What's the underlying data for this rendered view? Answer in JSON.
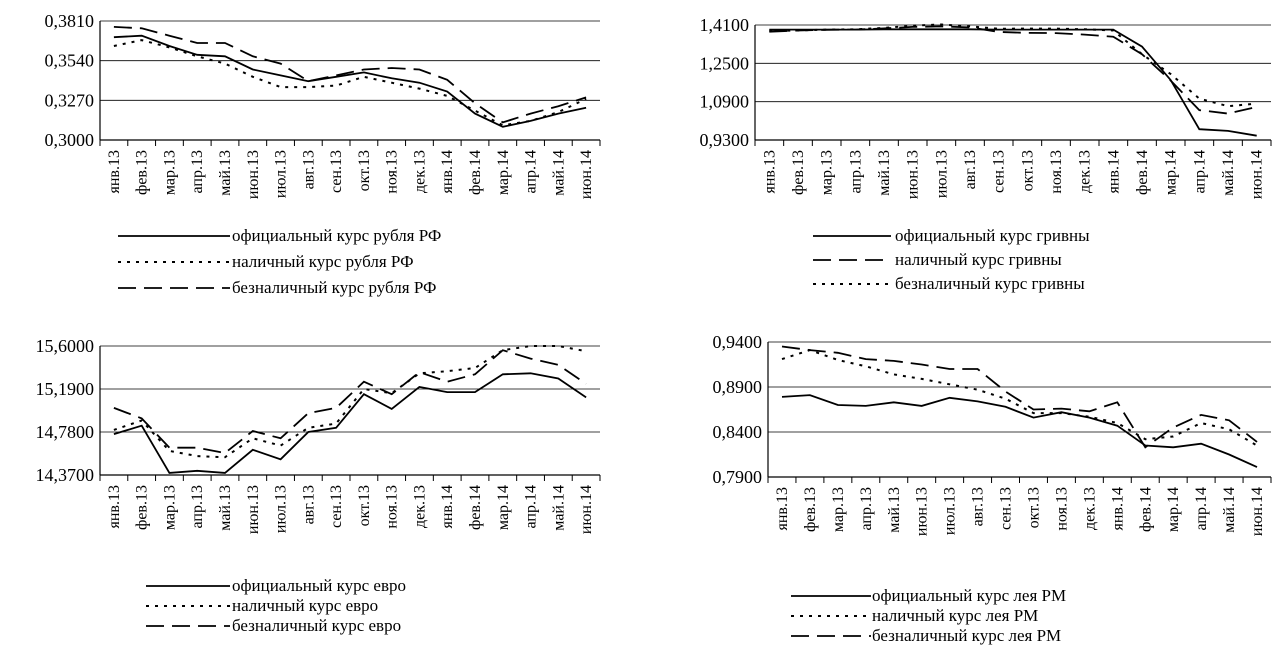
{
  "chart_data": [
    {
      "type": "line",
      "title": "",
      "xlabel": "",
      "ylabel": "",
      "categories": [
        "янв.13",
        "фев.13",
        "мар.13",
        "апр.13",
        "май.13",
        "июн.13",
        "июл.13",
        "авг.13",
        "сен.13",
        "окт.13",
        "ноя.13",
        "дек.13",
        "янв.14",
        "фев.14",
        "мар.14",
        "апр.14",
        "май.14",
        "июн.14"
      ],
      "yticks": [
        "0,3000",
        "0,3270",
        "0,3540",
        "0,3810"
      ],
      "ylim": [
        0.3,
        0.381
      ],
      "grid": true,
      "legend_position": "bottom",
      "series": [
        {
          "name": "официальный курс рубля РФ",
          "style": "solid",
          "values": [
            0.37,
            0.371,
            0.364,
            0.358,
            0.357,
            0.348,
            0.344,
            0.34,
            0.343,
            0.346,
            0.342,
            0.339,
            0.333,
            0.318,
            0.309,
            0.313,
            0.318,
            0.322
          ]
        },
        {
          "name": "наличный курс рубля РФ",
          "style": "dotted",
          "values": [
            0.364,
            0.368,
            0.363,
            0.357,
            0.352,
            0.343,
            0.336,
            0.336,
            0.337,
            0.343,
            0.339,
            0.335,
            0.33,
            0.32,
            0.31,
            0.313,
            0.319,
            0.328
          ]
        },
        {
          "name": "безналичный курс рубля РФ",
          "style": "dashed",
          "values": [
            0.377,
            0.376,
            0.371,
            0.366,
            0.366,
            0.357,
            0.352,
            0.34,
            0.344,
            0.348,
            0.349,
            0.348,
            0.341,
            0.325,
            0.312,
            0.318,
            0.323,
            0.329
          ]
        }
      ]
    },
    {
      "type": "line",
      "title": "",
      "xlabel": "",
      "ylabel": "",
      "categories": [
        "янв.13",
        "фев.13",
        "мар.13",
        "апр.13",
        "май.13",
        "июн.13",
        "июл.13",
        "авг.13",
        "сен.13",
        "окт.13",
        "ноя.13",
        "дек.13",
        "янв.14",
        "фев.14",
        "мар.14",
        "апр.14",
        "май.14",
        "июн.14"
      ],
      "yticks": [
        "0,9300",
        "1,0900",
        "1,2500",
        "1,4100"
      ],
      "ylim": [
        0.93,
        1.41
      ],
      "grid": true,
      "legend_position": "bottom",
      "series": [
        {
          "name": "официальный курс гривны",
          "style": "solid",
          "values": [
            1.391,
            1.391,
            1.391,
            1.391,
            1.392,
            1.392,
            1.392,
            1.392,
            1.391,
            1.391,
            1.391,
            1.391,
            1.391,
            1.32,
            1.18,
            0.975,
            0.968,
            0.948
          ]
        },
        {
          "name": "наличный курс гривны",
          "style": "dashed",
          "values": [
            1.382,
            1.387,
            1.39,
            1.391,
            1.396,
            1.402,
            1.404,
            1.4,
            1.381,
            1.377,
            1.376,
            1.37,
            1.361,
            1.288,
            1.178,
            1.055,
            1.04,
            1.068
          ]
        },
        {
          "name": "безналичный курс гривны",
          "style": "dotted",
          "values": [
            1.386,
            1.387,
            1.391,
            1.392,
            1.398,
            1.407,
            1.412,
            1.404,
            1.394,
            1.395,
            1.395,
            1.392,
            1.387,
            1.288,
            1.205,
            1.103,
            1.071,
            1.082
          ]
        }
      ]
    },
    {
      "type": "line",
      "title": "",
      "xlabel": "",
      "ylabel": "",
      "categories": [
        "янв.13",
        "фев.13",
        "мар.13",
        "апр.13",
        "май.13",
        "июн.13",
        "июл.13",
        "авг.13",
        "сен.13",
        "окт.13",
        "ноя.13",
        "дек.13",
        "янв.14",
        "фев.14",
        "мар.14",
        "апр.14",
        "май.14",
        "июн.14"
      ],
      "yticks": [
        "14,3700",
        "14,7800",
        "15,1900",
        "15,6000"
      ],
      "ylim": [
        14.37,
        15.6
      ],
      "grid": true,
      "legend_position": "bottom",
      "series": [
        {
          "name": "официальный курс евро",
          "style": "solid",
          "values": [
            14.76,
            14.84,
            14.39,
            14.41,
            14.39,
            14.61,
            14.52,
            14.78,
            14.82,
            15.14,
            15.0,
            15.21,
            15.16,
            15.16,
            15.33,
            15.34,
            15.29,
            15.11
          ]
        },
        {
          "name": "наличный курс евро",
          "style": "dotted",
          "values": [
            14.8,
            14.89,
            14.6,
            14.55,
            14.54,
            14.72,
            14.65,
            14.82,
            14.86,
            15.19,
            15.15,
            15.34,
            15.36,
            15.39,
            15.56,
            15.6,
            15.6,
            15.55
          ]
        },
        {
          "name": "безналичный курс евро",
          "style": "dashed",
          "values": [
            15.01,
            14.91,
            14.63,
            14.63,
            14.58,
            14.79,
            14.72,
            14.96,
            15.01,
            15.26,
            15.14,
            15.35,
            15.26,
            15.33,
            15.56,
            15.48,
            15.42,
            15.24
          ]
        }
      ]
    },
    {
      "type": "line",
      "title": "",
      "xlabel": "",
      "ylabel": "",
      "categories": [
        "янв.13",
        "фев.13",
        "мар.13",
        "апр.13",
        "май.13",
        "июн.13",
        "июл.13",
        "авг.13",
        "сен.13",
        "окт.13",
        "ноя.13",
        "дек.13",
        "янв.14",
        "фев.14",
        "мар.14",
        "апр.14",
        "май.14",
        "июн.14"
      ],
      "yticks": [
        "0,7900",
        "0,8400",
        "0,8900",
        "0,9400"
      ],
      "ylim": [
        0.79,
        0.94
      ],
      "grid": true,
      "legend_position": "bottom",
      "series": [
        {
          "name": "официальный курс лея РМ",
          "style": "solid",
          "values": [
            0.879,
            0.881,
            0.87,
            0.869,
            0.873,
            0.869,
            0.878,
            0.874,
            0.868,
            0.856,
            0.862,
            0.856,
            0.847,
            0.825,
            0.823,
            0.827,
            0.815,
            0.801
          ]
        },
        {
          "name": "наличный курс лея РМ",
          "style": "dotted",
          "values": [
            0.921,
            0.931,
            0.92,
            0.913,
            0.904,
            0.899,
            0.893,
            0.887,
            0.877,
            0.861,
            0.861,
            0.857,
            0.85,
            0.832,
            0.835,
            0.85,
            0.843,
            0.825
          ]
        },
        {
          "name": "безналичный курс лея РМ",
          "style": "dashed",
          "values": [
            0.935,
            0.931,
            0.928,
            0.921,
            0.919,
            0.915,
            0.91,
            0.91,
            0.885,
            0.865,
            0.866,
            0.863,
            0.873,
            0.823,
            0.845,
            0.859,
            0.853,
            0.829
          ]
        }
      ]
    }
  ]
}
